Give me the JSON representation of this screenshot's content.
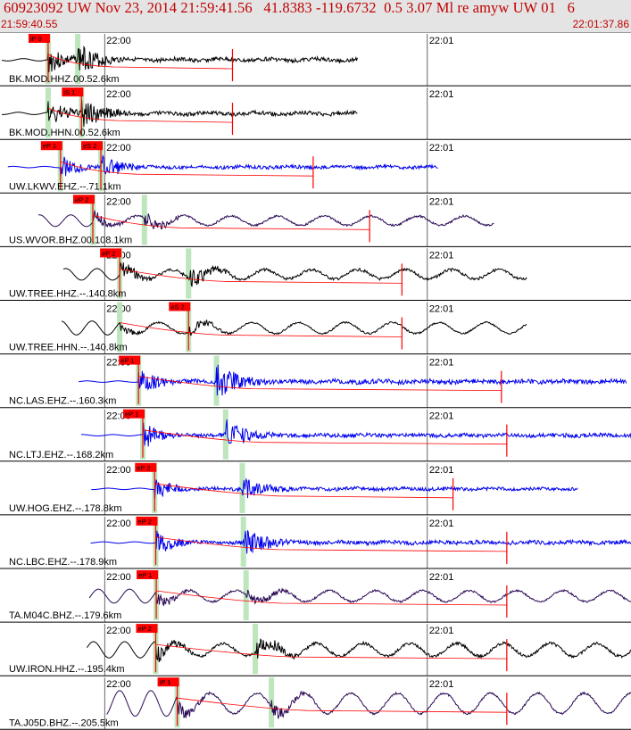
{
  "header": {
    "title": "60923092 UW Nov 23, 2014 21:59:41.56   41.8383 -119.6732  0.5 3.07 Ml re amyw UW 01   6",
    "start_time": "21:59:40.55",
    "end_time": "22:01:37.86"
  },
  "colors": {
    "header_bg": "#e4e4e4",
    "header_text": "#c00000",
    "trace_black": "#000000",
    "trace_blue": "#0000ee",
    "trace_purple": "#2a0a55",
    "pick": "#ff0000",
    "window": "#bde6bd"
  },
  "chart_data": {
    "type": "line",
    "x_unit": "time",
    "x_range": [
      "21:59:40.55",
      "22:01:37.86"
    ],
    "minute_marks": [
      "22:00",
      "22:01"
    ],
    "traces": [
      {
        "label": "BK.MOD.HHZ.00.52.6km",
        "color": "black",
        "p_pick": "iP 0",
        "s_pick": "",
        "p_time": "21:59:49.5",
        "s_time": "21:59:55.0",
        "end_time": "22:00:47.0",
        "amp": 0.7,
        "noise": 0.05
      },
      {
        "label": "BK.MOD.HHN.00.52.6km",
        "color": "black",
        "p_pick": "",
        "s_pick": "iS 1",
        "p_time": "21:59:49.5",
        "s_time": "21:59:55.7",
        "end_time": "22:00:47.0",
        "amp": 0.7,
        "noise": 0.05
      },
      {
        "label": "UW.LKWV.EHZ.--.71.1km",
        "color": "blue",
        "p_pick": "eP 1",
        "s_pick": "eS 2",
        "p_time": "21:59:51.8",
        "s_time": "21:59:59.3",
        "end_time": "22:01:02.0",
        "amp": 0.6,
        "noise": 0.03
      },
      {
        "label": "US.WVOR.BHZ.00.108.1km",
        "color": "purple",
        "p_pick": "eP 2",
        "s_pick": "",
        "p_time": "21:59:57.8",
        "s_time": "22:00:07.4",
        "end_time": "22:01:12.5",
        "amp": 0.35,
        "noise": 0.25
      },
      {
        "label": "UW.TREE.HHZ.--.140.8km",
        "color": "black",
        "p_pick": "eP 2",
        "s_pick": "",
        "p_time": "22:00:02.8",
        "s_time": "22:00:15.6",
        "end_time": "22:01:18.5",
        "amp": 0.5,
        "noise": 0.25
      },
      {
        "label": "UW.TREE.HHN.--.140.8km",
        "color": "black",
        "p_pick": "",
        "s_pick": "eS 2",
        "p_time": "22:00:02.8",
        "s_time": "22:00:15.6",
        "end_time": "22:01:18.5",
        "amp": 0.3,
        "noise": 0.3
      },
      {
        "label": "NC.LAS.EHZ.--.160.3km",
        "color": "blue",
        "p_pick": "eP 1",
        "s_pick": "",
        "p_time": "22:00:06.3",
        "s_time": "22:00:20.8",
        "end_time": "22:01:37.0",
        "amp": 0.8,
        "noise": 0.03
      },
      {
        "label": "NC.LTJ.EHZ.--.168.2km",
        "color": "blue",
        "p_pick": "eP 1",
        "s_pick": "",
        "p_time": "22:00:07.1",
        "s_time": "22:00:22.5",
        "end_time": "22:01:38.0",
        "amp": 0.7,
        "noise": 0.03
      },
      {
        "label": "UW.HOG.EHZ.--.178.8km",
        "color": "blue",
        "p_pick": "eP 2",
        "s_pick": "",
        "p_time": "22:00:09.3",
        "s_time": "22:00:25.6",
        "end_time": "22:01:28.0",
        "amp": 0.6,
        "noise": 0.03
      },
      {
        "label": "NC.LBC.EHZ.--.178.9km",
        "color": "blue",
        "p_pick": "eP 2",
        "s_pick": "",
        "p_time": "22:00:09.5",
        "s_time": "22:00:25.8",
        "end_time": "22:01:38.0",
        "amp": 0.7,
        "noise": 0.03
      },
      {
        "label": "TA.M04C.BHZ.--.179.6km",
        "color": "purple",
        "p_pick": "eP 1",
        "s_pick": "",
        "p_time": "22:00:09.6",
        "s_time": "22:00:26.3",
        "end_time": "22:01:38.0",
        "amp": 0.35,
        "noise": 0.3
      },
      {
        "label": "UW.IRON.HHZ.--.195.4km",
        "color": "black",
        "p_pick": "eP 2",
        "s_pick": "",
        "p_time": "22:00:09.5",
        "s_time": "22:00:28.0",
        "end_time": "22:01:38.0",
        "amp": 0.5,
        "noise": 0.35
      },
      {
        "label": "TA.J05D.BHZ.--.205.5km",
        "color": "purple",
        "p_pick": "iP 1",
        "s_pick": "",
        "p_time": "22:00:13.5",
        "s_time": "22:00:31.0",
        "end_time": "22:01:38.0",
        "amp": 0.35,
        "noise": 0.55
      }
    ]
  }
}
